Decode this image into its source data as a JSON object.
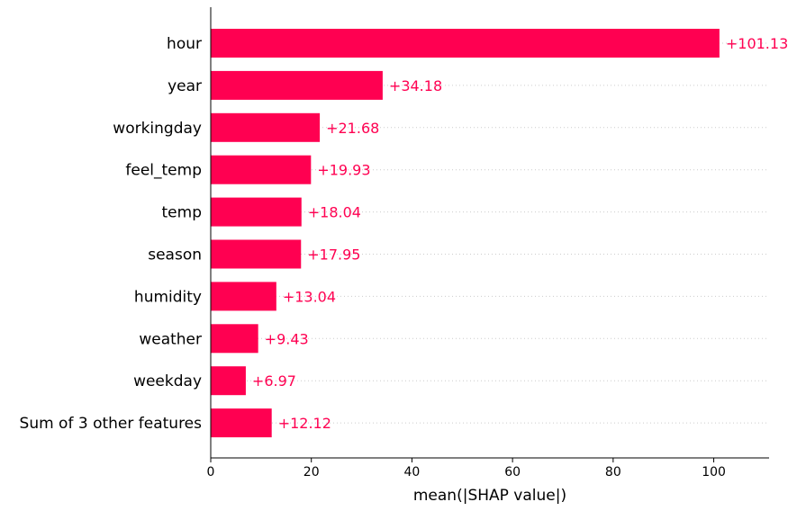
{
  "chart_data": {
    "type": "bar",
    "orientation": "horizontal",
    "categories": [
      "hour",
      "year",
      "workingday",
      "feel_temp",
      "temp",
      "season",
      "humidity",
      "weather",
      "weekday",
      "Sum of 3 other features"
    ],
    "values": [
      101.13,
      34.18,
      21.68,
      19.93,
      18.04,
      17.95,
      13.04,
      9.43,
      6.97,
      12.12
    ],
    "data_labels": [
      "+101.13",
      "+34.18",
      "+21.68",
      "+19.93",
      "+18.04",
      "+17.95",
      "+13.04",
      "+9.43",
      "+6.97",
      "+12.12"
    ],
    "xlabel": "mean(|SHAP value|)",
    "ylabel": "",
    "title": "",
    "xlim": [
      0,
      111
    ],
    "xticks": [
      0,
      20,
      40,
      60,
      80,
      100
    ],
    "grid": "dotted horizontal guides per row",
    "legend": "none",
    "bar_color": "#ff0051",
    "label_color": "#ff0051"
  }
}
